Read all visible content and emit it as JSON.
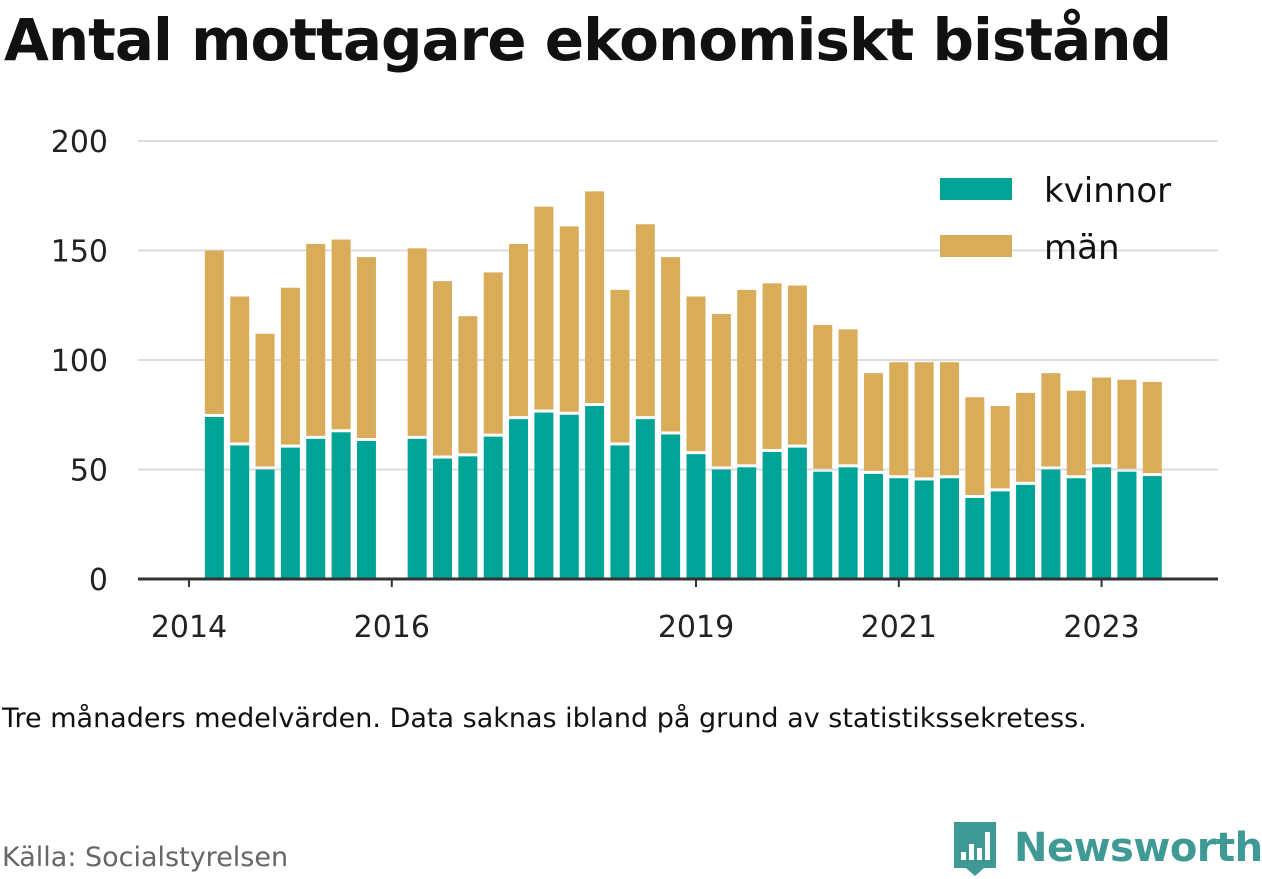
{
  "title": "Antal mottagare ekonomiskt bistånd",
  "note": "Tre månaders medelvärden. Data saknas ibland på grund av statistikssekretess.",
  "source": "Källa: Socialstyrelsen",
  "brand": {
    "name": "Newsworthy",
    "icon": "newsworthy-logo-icon",
    "color": "#3f9a96"
  },
  "colors": {
    "kvinnor": "#00a497",
    "man": "#d9ac5a",
    "grid": "#dddddd",
    "axis": "#333333"
  },
  "chart_data": {
    "type": "bar",
    "stacked": true,
    "ylim": [
      0,
      200
    ],
    "yticks": [
      0,
      50,
      100,
      150,
      200
    ],
    "xticks": [
      {
        "label": "2014",
        "x": 0
      },
      {
        "label": "2016",
        "x": 8
      },
      {
        "label": "2019",
        "x": 20
      },
      {
        "label": "2021",
        "x": 28
      },
      {
        "label": "2023",
        "x": 36
      }
    ],
    "x": [
      1,
      2,
      3,
      4,
      5,
      6,
      7,
      9,
      10,
      11,
      12,
      13,
      14,
      15,
      16,
      17,
      18,
      19,
      20,
      21,
      22,
      23,
      24,
      25,
      26,
      27,
      28,
      29,
      30,
      31,
      32,
      33,
      34,
      35,
      36,
      37,
      38
    ],
    "legend_position": "top-right",
    "series": [
      {
        "name": "kvinnor",
        "values": [
          74,
          61,
          50,
          60,
          64,
          67,
          63,
          64,
          55,
          56,
          65,
          73,
          76,
          75,
          79,
          61,
          73,
          66,
          57,
          50,
          51,
          58,
          60,
          49,
          51,
          48,
          46,
          45,
          46,
          37,
          40,
          43,
          50,
          46,
          51,
          49,
          47
        ]
      },
      {
        "name": "män",
        "values": [
          76,
          68,
          62,
          73,
          89,
          88,
          84,
          87,
          81,
          64,
          75,
          80,
          94,
          86,
          98,
          71,
          89,
          81,
          72,
          71,
          81,
          77,
          74,
          67,
          63,
          46,
          53,
          54,
          53,
          46,
          39,
          42,
          44,
          40,
          41,
          42,
          43
        ]
      }
    ]
  }
}
